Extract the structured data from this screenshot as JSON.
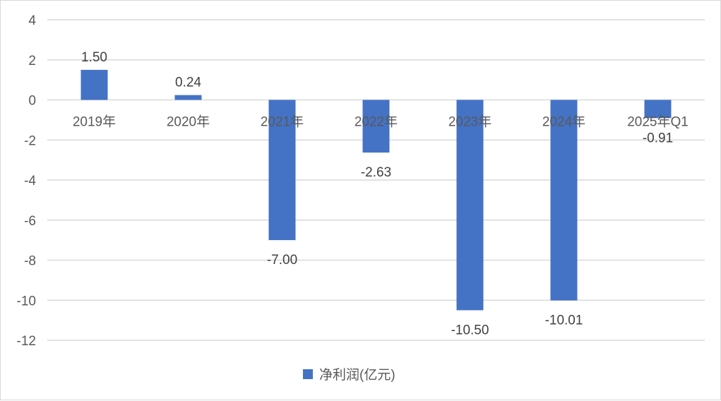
{
  "chart_data": {
    "type": "bar",
    "categories": [
      "2019年",
      "2020年",
      "2021年",
      "2022年",
      "2023年",
      "2024年",
      "2025年Q1"
    ],
    "series": [
      {
        "name": "净利润(亿元)",
        "values": [
          1.5,
          0.24,
          -7.0,
          -2.63,
          -10.5,
          -10.01,
          -0.91
        ],
        "data_labels": [
          "1.50",
          "0.24",
          "-7.00",
          "-2.63",
          "-10.50",
          "-10.01",
          "-0.91"
        ],
        "color": "#4472c4"
      }
    ],
    "ylim": [
      -12,
      4
    ],
    "y_ticks": [
      4,
      2,
      0,
      -2,
      -4,
      -6,
      -8,
      -10,
      -12
    ],
    "grid": true,
    "legend_position": "bottom",
    "colors": {
      "bar": "#4472c4",
      "grid": "#d9d9d9",
      "text": "#595959"
    }
  }
}
